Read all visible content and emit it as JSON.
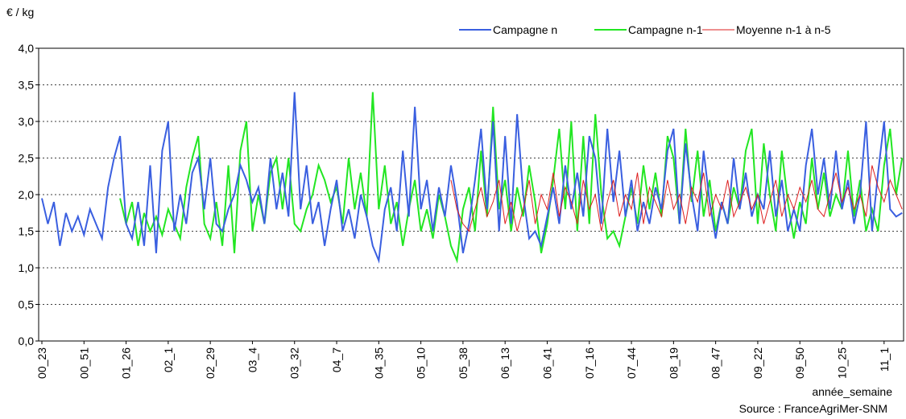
{
  "chart_data": {
    "type": "line",
    "y_label": "€ / kg",
    "x_label": "année_semaine",
    "source": "Source : FranceAgriMer-SNM",
    "categories": [
      "00_23",
      null,
      null,
      null,
      null,
      null,
      null,
      "00_51",
      null,
      null,
      null,
      null,
      null,
      null,
      "01_26",
      null,
      null,
      null,
      null,
      null,
      null,
      "02_1",
      null,
      null,
      null,
      null,
      null,
      null,
      "02_29",
      null,
      null,
      null,
      null,
      null,
      null,
      "03_4",
      null,
      null,
      null,
      null,
      null,
      null,
      "03_32",
      null,
      null,
      null,
      null,
      null,
      null,
      "04_7",
      null,
      null,
      null,
      null,
      null,
      null,
      "04_35",
      null,
      null,
      null,
      null,
      null,
      null,
      "05_10",
      null,
      null,
      null,
      null,
      null,
      null,
      "05_38",
      null,
      null,
      null,
      null,
      null,
      null,
      "06_13",
      null,
      null,
      null,
      null,
      null,
      null,
      "06_41",
      null,
      null,
      null,
      null,
      null,
      null,
      "07_16",
      null,
      null,
      null,
      null,
      null,
      null,
      "07_44",
      null,
      null,
      null,
      null,
      null,
      null,
      "08_19",
      null,
      null,
      null,
      null,
      null,
      null,
      "08_47",
      null,
      null,
      null,
      null,
      null,
      null,
      "09_22",
      null,
      null,
      null,
      null,
      null,
      null,
      "09_50",
      null,
      null,
      null,
      null,
      null,
      null,
      "10_25",
      null,
      null,
      null,
      null,
      null,
      null,
      "11_1",
      null,
      null,
      null
    ],
    "series": [
      {
        "name": "Campagne n",
        "color": "#3a5fe0",
        "values": [
          1.95,
          1.6,
          1.9,
          1.3,
          1.75,
          1.5,
          1.7,
          1.45,
          1.8,
          1.6,
          1.4,
          2.1,
          2.5,
          2.8,
          1.6,
          1.4,
          1.9,
          1.3,
          2.4,
          1.2,
          2.6,
          3.0,
          1.5,
          2.0,
          1.6,
          2.3,
          2.5,
          1.8,
          2.5,
          1.6,
          1.5,
          1.8,
          2.0,
          2.4,
          2.2,
          1.9,
          2.1,
          1.6,
          2.5,
          1.8,
          2.3,
          1.7,
          3.4,
          1.8,
          2.4,
          1.6,
          1.9,
          1.3,
          1.8,
          2.2,
          1.5,
          1.8,
          1.4,
          2.0,
          1.7,
          1.3,
          1.1,
          1.8,
          2.1,
          1.5,
          2.6,
          1.7,
          3.2,
          1.8,
          2.2,
          1.5,
          2.1,
          1.7,
          2.4,
          1.9,
          1.2,
          1.6,
          2.2,
          2.9,
          1.8,
          3.0,
          1.5,
          2.8,
          1.6,
          3.1,
          2.0,
          1.4,
          1.5,
          1.3,
          1.7,
          2.1,
          1.6,
          2.4,
          1.8,
          2.3,
          1.7,
          2.8,
          2.5,
          1.6,
          2.9,
          1.9,
          2.6,
          1.7,
          2.2,
          1.5,
          1.9,
          1.6,
          2.1,
          1.8,
          2.6,
          2.9,
          1.6,
          2.7,
          2.0,
          1.5,
          2.6,
          1.9,
          1.4,
          1.9,
          1.6,
          2.5,
          1.8,
          2.3,
          1.7,
          2.0,
          1.8,
          2.6,
          1.7,
          2.2,
          1.5,
          1.8,
          1.5,
          2.4,
          2.9,
          2.0,
          2.5,
          1.8,
          2.6,
          1.8,
          2.2,
          1.6,
          2.0,
          3.0,
          1.5,
          2.3,
          3.0,
          1.8,
          1.7,
          1.75
        ]
      },
      {
        "name": "Campagne n-1",
        "color": "#22e622",
        "values": [
          null,
          null,
          null,
          null,
          null,
          null,
          null,
          null,
          null,
          null,
          null,
          null,
          null,
          1.95,
          1.6,
          1.9,
          1.3,
          1.75,
          1.5,
          1.7,
          1.45,
          1.8,
          1.6,
          1.4,
          2.1,
          2.5,
          2.8,
          1.6,
          1.4,
          1.9,
          1.3,
          2.4,
          1.2,
          2.6,
          3.0,
          1.5,
          2.0,
          1.6,
          2.3,
          2.5,
          1.8,
          2.5,
          1.6,
          1.5,
          1.8,
          2.0,
          2.4,
          2.2,
          1.9,
          2.1,
          1.6,
          2.5,
          1.8,
          2.3,
          1.7,
          3.4,
          1.8,
          2.4,
          1.6,
          1.9,
          1.3,
          1.8,
          2.2,
          1.5,
          1.8,
          1.4,
          2.0,
          1.7,
          1.3,
          1.1,
          1.8,
          2.1,
          1.5,
          2.6,
          1.7,
          3.2,
          1.8,
          2.2,
          1.5,
          2.1,
          1.7,
          2.4,
          1.9,
          1.2,
          1.6,
          2.2,
          2.9,
          1.8,
          3.0,
          1.5,
          2.8,
          1.6,
          3.1,
          2.0,
          1.4,
          1.5,
          1.3,
          1.7,
          2.1,
          1.6,
          2.4,
          1.8,
          2.3,
          1.7,
          2.8,
          2.5,
          1.6,
          2.9,
          1.9,
          2.6,
          1.7,
          2.2,
          1.5,
          1.9,
          1.6,
          2.1,
          1.8,
          2.6,
          2.9,
          1.6,
          2.7,
          2.0,
          1.5,
          2.6,
          1.9,
          1.4,
          1.9,
          1.6,
          2.5,
          1.8,
          2.3,
          1.7,
          2.0,
          1.8,
          2.6,
          1.7,
          2.2,
          1.5,
          1.8,
          1.5,
          2.4,
          2.9,
          2.0,
          2.5
        ]
      },
      {
        "name": "Moyenne n-1 à n-5",
        "color": "#dd1f1f",
        "values": [
          null,
          null,
          null,
          null,
          null,
          null,
          null,
          null,
          null,
          null,
          null,
          null,
          null,
          null,
          null,
          null,
          null,
          null,
          null,
          null,
          null,
          null,
          null,
          null,
          null,
          null,
          null,
          null,
          null,
          null,
          null,
          null,
          null,
          null,
          null,
          null,
          null,
          null,
          null,
          null,
          null,
          null,
          null,
          null,
          null,
          null,
          null,
          null,
          null,
          null,
          null,
          null,
          null,
          null,
          null,
          null,
          null,
          null,
          null,
          null,
          null,
          null,
          null,
          null,
          null,
          null,
          null,
          null,
          2.2,
          1.8,
          1.6,
          1.5,
          1.8,
          2.1,
          1.7,
          1.9,
          2.2,
          1.6,
          1.9,
          1.5,
          1.8,
          2.2,
          1.6,
          2.0,
          1.8,
          2.3,
          1.7,
          2.1,
          1.9,
          1.6,
          2.2,
          1.8,
          2.0,
          1.5,
          1.9,
          2.2,
          1.7,
          2.0,
          1.8,
          2.3,
          1.6,
          2.1,
          1.9,
          1.7,
          2.2,
          1.8,
          2.0,
          1.6,
          2.1,
          1.9,
          2.3,
          1.7,
          2.0,
          1.8,
          2.2,
          1.7,
          1.9,
          2.1,
          1.8,
          2.0,
          1.6,
          1.9,
          2.2,
          1.7,
          2.0,
          1.8,
          2.1,
          1.9,
          2.2,
          1.8,
          1.7,
          2.0,
          2.3,
          1.9,
          2.1,
          1.8,
          2.0,
          1.7,
          2.4,
          2.1,
          1.9,
          2.2,
          2.0,
          1.8
        ]
      }
    ],
    "ylim": [
      0,
      4
    ],
    "yticks": [
      {
        "value": 0,
        "label": "0,0"
      },
      {
        "value": 0.5,
        "label": "0,5"
      },
      {
        "value": 1,
        "label": "1,0"
      },
      {
        "value": 1.5,
        "label": "1,5"
      },
      {
        "value": 2,
        "label": "2,0"
      },
      {
        "value": 2.5,
        "label": "2,5"
      },
      {
        "value": 3,
        "label": "3,0"
      },
      {
        "value": 3.5,
        "label": "3,5"
      },
      {
        "value": 4,
        "label": "4,0"
      }
    ],
    "grid": true
  }
}
